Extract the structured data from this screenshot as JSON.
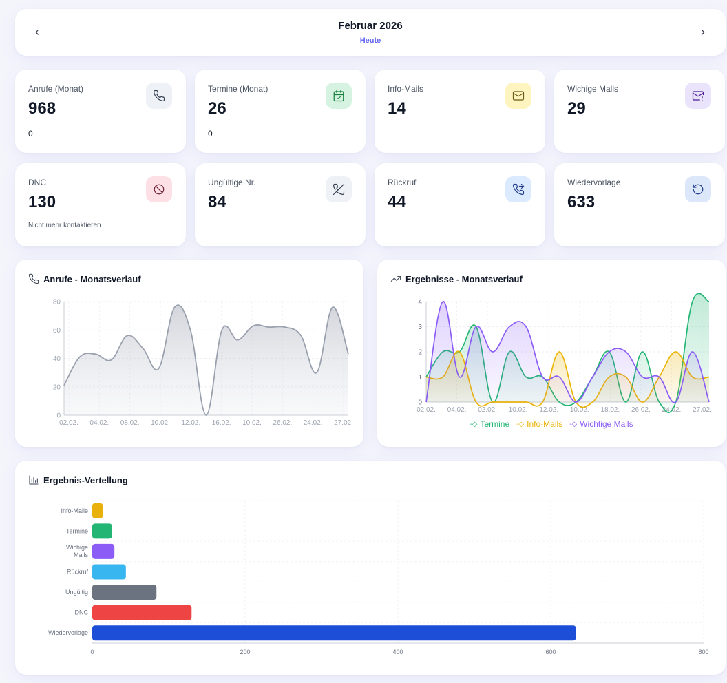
{
  "header": {
    "month_title": "Februar 2026",
    "today_label": "Heute",
    "prev_label": "‹",
    "next_label": "›"
  },
  "stats": [
    {
      "label": "Anrufe (Monat)",
      "value": "968",
      "sub": "0",
      "icon": "phone-icon",
      "icon_bg": "#eef1f6",
      "icon_color": "#374151"
    },
    {
      "label": "Termine (Monat)",
      "value": "26",
      "sub": "0",
      "icon": "calendar-check-icon",
      "icon_bg": "#d6f3e1",
      "icon_color": "#15803d"
    },
    {
      "label": "Info-Mails",
      "value": "14",
      "sub": "",
      "icon": "mail-icon",
      "icon_bg": "#fdf4c0",
      "icon_color": "#6b5b14"
    },
    {
      "label": "Wichige Malls",
      "value": "29",
      "sub": "",
      "icon": "mail-alert-icon",
      "icon_bg": "#e9e3fb",
      "icon_color": "#4c1d95"
    },
    {
      "label": "DNC",
      "value": "130",
      "sub": "Nicht mehr kontaktieren",
      "icon": "ban-icon",
      "icon_bg": "#fde0e6",
      "icon_color": "#6b2131"
    },
    {
      "label": "Ungültige Nr.",
      "value": "84",
      "sub": "",
      "icon": "phone-off-icon",
      "icon_bg": "#eef1f6",
      "icon_color": "#374151"
    },
    {
      "label": "Rückruf",
      "value": "44",
      "sub": "",
      "icon": "phone-forward-icon",
      "icon_bg": "#dbeafe",
      "icon_color": "#1e3a8a"
    },
    {
      "label": "Wiedervorlage",
      "value": "633",
      "sub": "",
      "icon": "rotate-icon",
      "icon_bg": "#dce7fa",
      "icon_color": "#1e3a8a"
    }
  ],
  "charts": {
    "calls": {
      "title": "Anrufe - Monatsverlauf",
      "icon": "phone-icon"
    },
    "results": {
      "title": "Ergebnisse - Monatsverlauf",
      "icon": "trending-up-icon"
    },
    "distribution": {
      "title": "Ergebnis-Vertellung",
      "icon": "bar-chart-icon"
    }
  },
  "chart_data": [
    {
      "type": "area",
      "title": "Anrufe - Monatsverlauf",
      "ylim": [
        0,
        80
      ],
      "yticks": [
        0,
        20,
        40,
        60,
        80
      ],
      "xticks": [
        "02.02.",
        "04.02.",
        "08.02.",
        "10.02.",
        "12.02.",
        "16.02.",
        "10.02.",
        "26.02.",
        "24.02.",
        "27.02."
      ],
      "series": [
        {
          "values": [
            21,
            41,
            43,
            39,
            56,
            47,
            33,
            76,
            60,
            0,
            60,
            53,
            63,
            62,
            62,
            56,
            30,
            76,
            43
          ]
        }
      ],
      "color": "#9aa1ae",
      "grid": true
    },
    {
      "type": "area",
      "title": "Ergebnisse - Monatsverlauf",
      "ylim": [
        0,
        4
      ],
      "yticks": [
        0,
        1,
        2,
        3,
        4
      ],
      "xticks": [
        "02.02.",
        "04.02.",
        "02.02.",
        "10.02.",
        "12.02.",
        "10.02.",
        "18.02.",
        "26.02.",
        "24.02.",
        "27.02."
      ],
      "series": [
        {
          "name": "Termine",
          "color": "#22b573",
          "values": [
            1,
            2,
            2,
            3,
            0,
            2,
            1,
            1,
            0,
            0,
            1,
            2,
            0,
            2,
            0,
            0,
            4,
            4
          ]
        },
        {
          "name": "Info-Mails",
          "color": "#eab308",
          "values": [
            1,
            1,
            2,
            0,
            0,
            0,
            0,
            0,
            2,
            0,
            0,
            1,
            1,
            0,
            1,
            2,
            1,
            1
          ]
        },
        {
          "name": "Wichtige Mails",
          "color": "#8b5cf6",
          "values": [
            0,
            4,
            1,
            3,
            2,
            3,
            3,
            1,
            1,
            0,
            1,
            2,
            2,
            1,
            1,
            0,
            2,
            0
          ]
        }
      ],
      "legend_position": "bottom",
      "grid": true
    },
    {
      "type": "bar",
      "orientation": "horizontal",
      "title": "Ergebnis-Vertellung",
      "categories": [
        "Info-Maile",
        "Termine",
        "Wichige Malls",
        "Rückruf",
        "Ungültig",
        "DNC",
        "Wiedervorlage"
      ],
      "values": [
        14,
        26,
        29,
        44,
        84,
        130,
        633
      ],
      "colors": [
        "#e8b10c",
        "#22b573",
        "#8b5cf6",
        "#38b6f0",
        "#6b7280",
        "#ef4444",
        "#1d4ed8"
      ],
      "xlim": [
        0,
        800
      ],
      "xticks": [
        0,
        200,
        400,
        600,
        800
      ],
      "grid": true
    }
  ]
}
